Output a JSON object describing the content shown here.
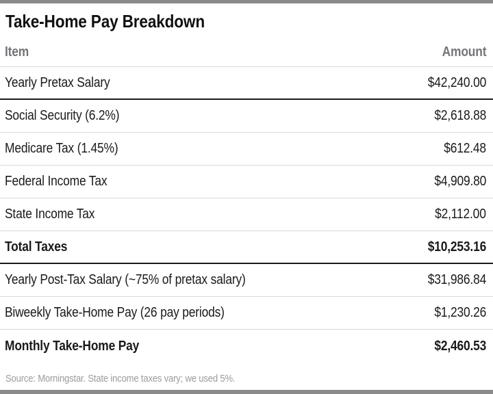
{
  "title": "Take-Home Pay Breakdown",
  "columns": {
    "item": "Item",
    "amount": "Amount"
  },
  "rows": [
    {
      "item": "Yearly Pretax Salary",
      "amount": "$42,240.00",
      "bold": false,
      "divider": "dark"
    },
    {
      "item": "Social Security (6.2%)",
      "amount": "$2,618.88",
      "bold": false,
      "divider": "light"
    },
    {
      "item": "Medicare Tax (1.45%)",
      "amount": "$612.48",
      "bold": false,
      "divider": "light"
    },
    {
      "item": "Federal Income Tax",
      "amount": "$4,909.80",
      "bold": false,
      "divider": "light"
    },
    {
      "item": "State Income Tax",
      "amount": "$2,112.00",
      "bold": false,
      "divider": "light"
    },
    {
      "item": "Total Taxes",
      "amount": "$10,253.16",
      "bold": true,
      "divider": "dark"
    },
    {
      "item": "Yearly Post-Tax Salary (~75% of pretax salary)",
      "amount": "$31,986.84",
      "bold": false,
      "divider": "light"
    },
    {
      "item": "Biweekly Take-Home Pay (26 pay periods)",
      "amount": "$1,230.26",
      "bold": false,
      "divider": "light"
    },
    {
      "item": "Monthly Take-Home Pay",
      "amount": "$2,460.53",
      "bold": true,
      "divider": "none"
    }
  ],
  "source": "Source: Morningstar. State income taxes vary; we used 5%.",
  "colors": {
    "rule_bar": "#8a8a8a",
    "text": "#1a1a1a",
    "header_text": "#747578",
    "rule_light": "#d8d8d8",
    "rule_dark": "#1a1a1a",
    "source_text": "#9b9b9b"
  },
  "chart_data": {
    "type": "table",
    "title": "Take-Home Pay Breakdown",
    "columns": [
      "Item",
      "Amount"
    ],
    "rows": [
      [
        "Yearly Pretax Salary",
        42240.0
      ],
      [
        "Social Security (6.2%)",
        2618.88
      ],
      [
        "Medicare Tax (1.45%)",
        612.48
      ],
      [
        "Federal Income Tax",
        4909.8
      ],
      [
        "State Income Tax",
        2112.0
      ],
      [
        "Total Taxes",
        10253.16
      ],
      [
        "Yearly Post-Tax Salary (~75% of pretax salary)",
        31986.84
      ],
      [
        "Biweekly Take-Home Pay (26 pay periods)",
        1230.26
      ],
      [
        "Monthly Take-Home Pay",
        2460.53
      ]
    ],
    "emphasized_rows": [
      "Total Taxes",
      "Monthly Take-Home Pay"
    ],
    "source": "Source: Morningstar. State income taxes vary; we used 5%."
  }
}
